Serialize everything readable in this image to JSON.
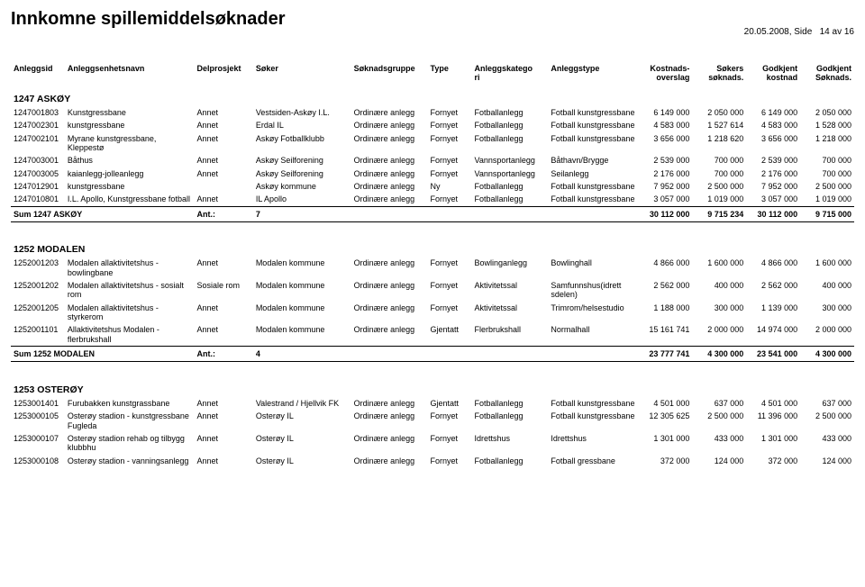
{
  "header": {
    "title": "Innkomne spillemiddelsøknader",
    "date": "20.05.2008,",
    "side_label": "Side",
    "page_current": "14",
    "page_sep": "av",
    "page_total": "16"
  },
  "columns": {
    "anleggsid": "Anleggsid",
    "enhetsnavn": "Anleggsenhetsnavn",
    "delprosjekt": "Delprosjekt",
    "soker": "Søker",
    "soknadsgruppe": "Søknadsgruppe",
    "type": "Type",
    "kategori": "Anleggskatego\nri",
    "anleggstype": "Anleggstype",
    "kostnads": "Kostnads-\noverslag",
    "sokers": "Søkers\nsøknads.",
    "godkjent_kost": "Godkjent\nkostnad",
    "godkjent_sok": "Godkjent\nSøknads."
  },
  "groups": [
    {
      "title": "1247 ASKØY",
      "rows": [
        {
          "id": "1247001803",
          "enh": "Kunstgressbane",
          "del": "Annet",
          "sok": "Vestsiden-Askøy I.L.",
          "grp": "Ordinære anlegg",
          "typ": "Fornyet",
          "kat": "Fotballanlegg",
          "atp": "Fotball kunstgressbane",
          "k": "6 149 000",
          "s": "2 050 000",
          "gk": "6 149 000",
          "gs": "2 050 000"
        },
        {
          "id": "1247002301",
          "enh": "kunstgressbane",
          "del": "Annet",
          "sok": "Erdal IL",
          "grp": "Ordinære anlegg",
          "typ": "Fornyet",
          "kat": "Fotballanlegg",
          "atp": "Fotball kunstgressbane",
          "k": "4 583 000",
          "s": "1 527 614",
          "gk": "4 583 000",
          "gs": "1 528 000"
        },
        {
          "id": "1247002101",
          "enh": "Myrane kunstgressbane, Kleppestø",
          "del": "Annet",
          "sok": "Askøy Fotballklubb",
          "grp": "Ordinære anlegg",
          "typ": "Fornyet",
          "kat": "Fotballanlegg",
          "atp": "Fotball kunstgressbane",
          "k": "3 656 000",
          "s": "1 218 620",
          "gk": "3 656 000",
          "gs": "1 218 000"
        },
        {
          "id": "1247003001",
          "enh": "Båthus",
          "del": "Annet",
          "sok": "Askøy Seilforening",
          "grp": "Ordinære anlegg",
          "typ": "Fornyet",
          "kat": "Vannsportanlegg",
          "atp": "Båthavn/Brygge",
          "k": "2 539 000",
          "s": "700 000",
          "gk": "2 539 000",
          "gs": "700 000"
        },
        {
          "id": "1247003005",
          "enh": "kaianlegg-jolleanlegg",
          "del": "Annet",
          "sok": "Askøy Seilforening",
          "grp": "Ordinære anlegg",
          "typ": "Fornyet",
          "kat": "Vannsportanlegg",
          "atp": "Seilanlegg",
          "k": "2 176 000",
          "s": "700 000",
          "gk": "2 176 000",
          "gs": "700 000"
        },
        {
          "id": "1247012901",
          "enh": "kunstgressbane",
          "del": "",
          "sok": "Askøy kommune",
          "grp": "Ordinære anlegg",
          "typ": "Ny",
          "kat": "Fotballanlegg",
          "atp": "Fotball kunstgressbane",
          "k": "7 952 000",
          "s": "2 500 000",
          "gk": "7 952 000",
          "gs": "2 500 000"
        },
        {
          "id": "1247010801",
          "enh": "I.L. Apollo, Kunstgressbane fotball",
          "del": "Annet",
          "sok": "IL Apollo",
          "grp": "Ordinære anlegg",
          "typ": "Fornyet",
          "kat": "Fotballanlegg",
          "atp": "Fotball kunstgressbane",
          "k": "3 057 000",
          "s": "1 019 000",
          "gk": "3 057 000",
          "gs": "1 019 000"
        }
      ],
      "sum": {
        "label": "Sum 1247 ASKØY",
        "ant_label": "Ant.:",
        "ant": "7",
        "k": "30 112 000",
        "s": "9 715 234",
        "gk": "30 112 000",
        "gs": "9 715 000"
      }
    },
    {
      "title": "1252 MODALEN",
      "rows": [
        {
          "id": "1252001203",
          "enh": "Modalen allaktivitetshus - bowlingbane",
          "del": "Annet",
          "sok": "Modalen kommune",
          "grp": "Ordinære anlegg",
          "typ": "Fornyet",
          "kat": "Bowlinganlegg",
          "atp": "Bowlinghall",
          "k": "4 866 000",
          "s": "1 600 000",
          "gk": "4 866 000",
          "gs": "1 600 000"
        },
        {
          "id": "1252001202",
          "enh": "Modalen allaktivitetshus - sosialt rom",
          "del": "Sosiale rom",
          "sok": "Modalen kommune",
          "grp": "Ordinære anlegg",
          "typ": "Fornyet",
          "kat": "Aktivitetssal",
          "atp": "Samfunnshus(idrett sdelen)",
          "k": "2 562 000",
          "s": "400 000",
          "gk": "2 562 000",
          "gs": "400 000"
        },
        {
          "id": "1252001205",
          "enh": "Modalen allaktivitetshus - styrkerom",
          "del": "Annet",
          "sok": "Modalen kommune",
          "grp": "Ordinære anlegg",
          "typ": "Fornyet",
          "kat": "Aktivitetssal",
          "atp": "Trimrom/helsestudio",
          "k": "1 188 000",
          "s": "300 000",
          "gk": "1 139 000",
          "gs": "300 000"
        },
        {
          "id": "1252001101",
          "enh": "Allaktivitetshus Modalen - flerbrukshall",
          "del": "Annet",
          "sok": "Modalen kommune",
          "grp": "Ordinære anlegg",
          "typ": "Gjentatt",
          "kat": "Flerbrukshall",
          "atp": "Normalhall",
          "k": "15 161 741",
          "s": "2 000 000",
          "gk": "14 974 000",
          "gs": "2 000 000"
        }
      ],
      "sum": {
        "label": "Sum 1252 MODALEN",
        "ant_label": "Ant.:",
        "ant": "4",
        "k": "23 777 741",
        "s": "4 300 000",
        "gk": "23 541 000",
        "gs": "4 300 000"
      }
    },
    {
      "title": "1253 OSTERØY",
      "rows": [
        {
          "id": "1253001401",
          "enh": "Furubakken kunstgrassbane",
          "del": "Annet",
          "sok": "Valestrand / Hjellvik FK",
          "grp": "Ordinære anlegg",
          "typ": "Gjentatt",
          "kat": "Fotballanlegg",
          "atp": "Fotball kunstgressbane",
          "k": "4 501 000",
          "s": "637 000",
          "gk": "4 501 000",
          "gs": "637 000"
        },
        {
          "id": "1253000105",
          "enh": "Osterøy stadion - kunstgressbane Fugleda",
          "del": "Annet",
          "sok": "Osterøy IL",
          "grp": "Ordinære anlegg",
          "typ": "Fornyet",
          "kat": "Fotballanlegg",
          "atp": "Fotball kunstgressbane",
          "k": "12 305 625",
          "s": "2 500 000",
          "gk": "11 396 000",
          "gs": "2 500 000"
        },
        {
          "id": "1253000107",
          "enh": "Osterøy stadion rehab og tilbygg klubbhu",
          "del": "Annet",
          "sok": "Osterøy IL",
          "grp": "Ordinære anlegg",
          "typ": "Fornyet",
          "kat": "Idrettshus",
          "atp": "Idrettshus",
          "k": "1 301 000",
          "s": "433 000",
          "gk": "1 301 000",
          "gs": "433 000"
        },
        {
          "id": "1253000108",
          "enh": "Osterøy stadion - vanningsanlegg",
          "del": "Annet",
          "sok": "Osterøy IL",
          "grp": "Ordinære anlegg",
          "typ": "Fornyet",
          "kat": "Fotballanlegg",
          "atp": "Fotball gressbane",
          "k": "372 000",
          "s": "124 000",
          "gk": "372 000",
          "gs": "124 000"
        }
      ],
      "sum": null
    }
  ]
}
